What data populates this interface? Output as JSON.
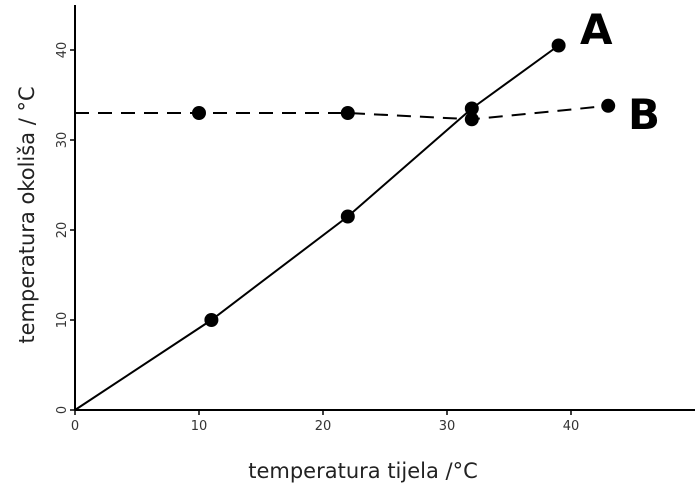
{
  "chart_data": {
    "type": "line",
    "title": "",
    "xlabel": "temperatura tijela /°C",
    "ylabel": "temperatura okoliša / °C",
    "xlim": [
      0,
      50
    ],
    "ylim": [
      0,
      45
    ],
    "xticks": [
      "0",
      "10",
      "20",
      "30",
      "40"
    ],
    "yticks": [
      "0",
      "10",
      "20",
      "30",
      "40"
    ],
    "grid": false,
    "series": [
      {
        "name": "A",
        "line_style": "solid",
        "line_points": [
          [
            0,
            0
          ],
          [
            11,
            10
          ],
          [
            22,
            21.5
          ],
          [
            32,
            33.5
          ],
          [
            39,
            40.5
          ]
        ],
        "markers": [
          [
            11,
            10
          ],
          [
            22,
            21.5
          ],
          [
            32,
            33.5
          ],
          [
            39,
            40.5
          ]
        ]
      },
      {
        "name": "B",
        "line_style": "dashed",
        "line_points": [
          [
            0,
            33
          ],
          [
            10,
            33
          ],
          [
            22,
            33
          ],
          [
            32,
            32.3
          ],
          [
            43,
            33.8
          ]
        ],
        "markers": [
          [
            10,
            33
          ],
          [
            22,
            33
          ],
          [
            32,
            32.3
          ],
          [
            43,
            33.8
          ]
        ]
      }
    ]
  }
}
